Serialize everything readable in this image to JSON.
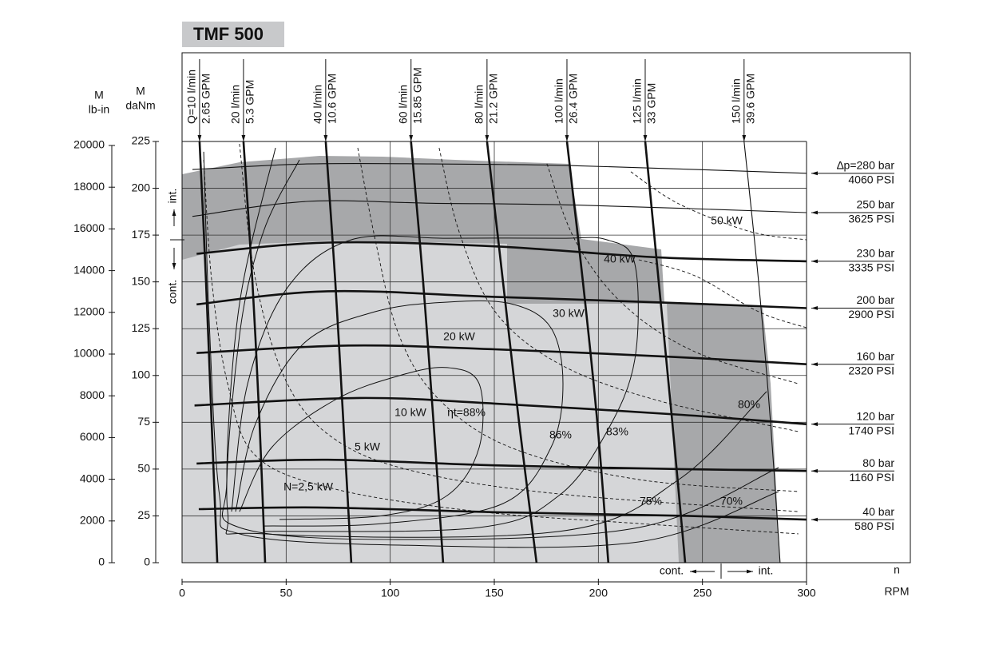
{
  "title": "TMF 500",
  "chart_data": {
    "type": "motor-diagram",
    "x_label": "n",
    "x_unit": "RPM",
    "y_label": [
      "M",
      "daNm"
    ],
    "y2_label": [
      "M",
      "lb-in"
    ],
    "xlim": [
      0,
      300
    ],
    "xticks": [
      0,
      50,
      100,
      150,
      200,
      250,
      300
    ],
    "ylim": [
      0,
      225
    ],
    "yticks": [
      0,
      25,
      50,
      75,
      100,
      125,
      150,
      175,
      200,
      225
    ],
    "y2lim": [
      0,
      20000
    ],
    "y2ticks": [
      0,
      2000,
      4000,
      6000,
      8000,
      10000,
      12000,
      14000,
      16000,
      18000,
      20000
    ],
    "grid": true,
    "zones": {
      "int": "int.",
      "cont": "cont."
    },
    "pressure_lines": [
      {
        "label": "∆p=280 bar",
        "psi": "4060 PSI",
        "bold": false,
        "x": [
          5,
          60,
          120,
          190,
          300
        ],
        "values": [
          210,
          213,
          213,
          212,
          208
        ]
      },
      {
        "label": "250 bar",
        "psi": "3625 PSI",
        "bold": false,
        "x": [
          5,
          60,
          120,
          190,
          300
        ],
        "values": [
          185,
          193,
          192,
          191,
          187
        ]
      },
      {
        "label": "230 bar",
        "psi": "3335 PSI",
        "bold": true,
        "x": [
          7,
          70,
          150,
          230,
          300
        ],
        "values": [
          165,
          171,
          169,
          163,
          161
        ]
      },
      {
        "label": "200 bar",
        "psi": "2900 PSI",
        "bold": true,
        "x": [
          7,
          70,
          150,
          230,
          300
        ],
        "values": [
          138,
          145,
          142,
          139,
          136
        ]
      },
      {
        "label": "160 bar",
        "psi": "2320 PSI",
        "bold": true,
        "x": [
          7,
          80,
          150,
          235,
          300
        ],
        "values": [
          112,
          116,
          114,
          110,
          106
        ]
      },
      {
        "label": "120 bar",
        "psi": "1740 PSI",
        "bold": true,
        "x": [
          6,
          85,
          150,
          240,
          300
        ],
        "values": [
          84,
          88,
          85,
          79,
          74
        ]
      },
      {
        "label": "80 bar",
        "psi": "1160 PSI",
        "bold": true,
        "x": [
          7,
          70,
          150,
          240,
          300
        ],
        "values": [
          53,
          55,
          52,
          50,
          49
        ]
      },
      {
        "label": "40 bar",
        "psi": "580 PSI",
        "bold": true,
        "x": [
          8,
          65,
          150,
          243,
          300
        ],
        "values": [
          28.6,
          29.5,
          27,
          25,
          23
        ]
      }
    ],
    "flow_lines": [
      {
        "label": "Q=10 l/min",
        "gpm": "2.65 GPM",
        "bold": true,
        "x": [
          8.4,
          11.5,
          14.2,
          16.9
        ],
        "values": [
          225,
          150,
          75,
          0
        ]
      },
      {
        "label": "20 l/min",
        "gpm": "5.3 GPM",
        "bold": true,
        "x": [
          29.5,
          33.8,
          37.2,
          39.9
        ],
        "values": [
          225,
          150,
          75,
          0
        ]
      },
      {
        "label": "40 l/min",
        "gpm": "10.6 GPM",
        "bold": true,
        "x": [
          69,
          73.6,
          77.5,
          81.3
        ],
        "values": [
          225,
          150,
          75,
          0
        ]
      },
      {
        "label": "60 l/min",
        "gpm": "15.85 GPM",
        "bold": true,
        "x": [
          110,
          115.8,
          120.8,
          125.4
        ],
        "values": [
          225,
          150,
          75,
          0
        ]
      },
      {
        "label": "80 l/min",
        "gpm": "21.2 GPM",
        "bold": true,
        "x": [
          146.5,
          154.2,
          161.9,
          170.3
        ],
        "values": [
          225,
          150,
          75,
          0
        ]
      },
      {
        "label": "100 l/min",
        "gpm": "26.4 GPM",
        "bold": true,
        "x": [
          184.9,
          192.6,
          199.5,
          204.8
        ],
        "values": [
          225,
          150,
          75,
          0
        ]
      },
      {
        "label": "125 l/min",
        "gpm": "33 GPM",
        "bold": true,
        "x": [
          222.5,
          229,
          235.5,
          241.7
        ],
        "values": [
          225,
          150,
          75,
          0
        ]
      },
      {
        "label": "150 l/min",
        "gpm": "39.6 GPM",
        "bold": false,
        "x": [
          270,
          277,
          282.7,
          287.3
        ],
        "values": [
          225,
          150,
          75,
          0
        ]
      }
    ],
    "power_lines": [
      {
        "label": "50 kW",
        "x": [
          215.6,
          238.6,
          273.1,
          300
        ],
        "values": [
          208.8,
          191.7,
          176.8,
          172.5
        ]
      },
      {
        "label": "40 kW",
        "x": [
          219.4,
          246.3,
          276.9,
          300
        ],
        "values": [
          161.8,
          153.3,
          134.1,
          125.5
        ]
      },
      {
        "label": "30 kW",
        "x": [
          175.3,
          188.7,
          211.7,
          246.3,
          296.1
        ],
        "values": [
          213.1,
          172.5,
          138.3,
          112.7,
          95.6
        ]
      },
      {
        "label": "20 kW",
        "x": [
          123.5,
          133.1,
          150.4,
          181,
          227.1,
          296.1
        ],
        "values": [
          221.6,
          176.8,
          134.1,
          106.3,
          87.1,
          70
        ]
      },
      {
        "label": "10 kW",
        "x": [
          84.4,
          92.8,
          104.3,
          123.5,
          158,
          219.4,
          296.1
        ],
        "values": [
          221.6,
          172.5,
          121.3,
          87.1,
          61.5,
          44.4,
          38
        ]
      },
      {
        "label": "5 kW",
        "x": [
          27.6,
          35.3,
          50.6,
          73.6,
          112,
          181,
          296.1
        ],
        "values": [
          223.7,
          151.2,
          95.6,
          65.8,
          48.7,
          36.7,
          27.3
        ]
      },
      {
        "label": "N=2,5 kW",
        "x": [
          10.4,
          14.2,
          21.9,
          35.3,
          73.6,
          142.7,
          219.4,
          296.1
        ],
        "values": [
          215.2,
          151.2,
          95.6,
          57.2,
          39.3,
          27.3,
          20.9,
          15.4
        ]
      }
    ],
    "efficiency_lines": [
      {
        "label": "ηt=88%",
        "x": [
          27.6,
          43,
          73.7,
          104.3,
          127.4,
          142.7,
          142.7,
          127.4,
          96.7,
          46.8
        ],
        "values": [
          27.3,
          61.5,
          87.1,
          99.9,
          104.2,
          95.6,
          61.5,
          35.9,
          25.2,
          23.1
        ]
      },
      {
        "label": "86%",
        "x": [
          25.7,
          35.3,
          58.3,
          92.8,
          127.4,
          158.1,
          177.2,
          183,
          177.2,
          154.2,
          96.7,
          39.1
        ],
        "values": [
          27.3,
          74.3,
          117,
          134.1,
          139.2,
          138.3,
          125.5,
          95.6,
          61.5,
          31.6,
          20.9,
          19.6
        ]
      },
      {
        "label": "83%",
        "x": [
          23.8,
          31.5,
          50.6,
          81.3,
          127.4,
          181.1,
          204.1,
          217.5,
          217.5,
          204.1,
          181.1,
          142.7,
          39.1
        ],
        "values": [
          27.3,
          95.6,
          146.9,
          172.5,
          173.3,
          173.3,
          172.5,
          159.7,
          108.4,
          70,
          35.9,
          18.8,
          16.7
        ]
      },
      {
        "label": "80%",
        "x": [
          56.4,
          39.1,
          27.6,
          21.9,
          39.1,
          181.1,
          238.6,
          280.8
        ],
        "values": [
          215.2,
          176.8,
          121.3,
          27.3,
          15.4,
          16.7,
          44.4,
          91.4
        ]
      },
      {
        "label": "75%",
        "x": [
          44.9,
          27.6,
          21.5,
          27.6,
          104.3,
          219.4,
          286.6
        ],
        "values": [
          221.6,
          138.3,
          44.4,
          18.8,
          12.4,
          18.8,
          50.8
        ]
      },
      {
        "label": "70%",
        "x": [
          10.4,
          13,
          18,
          27.6,
          104.3,
          219.4,
          286.6
        ],
        "values": [
          219.5,
          129.8,
          35.9,
          15.4,
          9.4,
          11.1,
          38
        ]
      }
    ]
  }
}
